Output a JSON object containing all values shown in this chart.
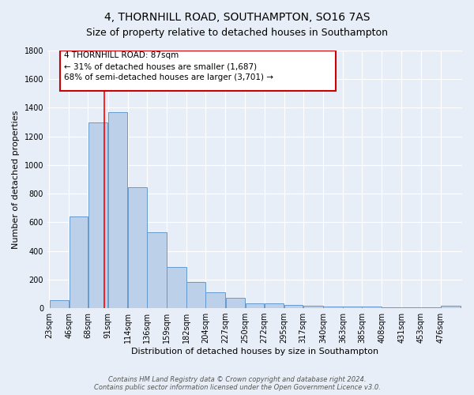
{
  "title": "4, THORNHILL ROAD, SOUTHAMPTON, SO16 7AS",
  "subtitle": "Size of property relative to detached houses in Southampton",
  "xlabel": "Distribution of detached houses by size in Southampton",
  "ylabel": "Number of detached properties",
  "bin_labels": [
    "23sqm",
    "46sqm",
    "68sqm",
    "91sqm",
    "114sqm",
    "136sqm",
    "159sqm",
    "182sqm",
    "204sqm",
    "227sqm",
    "250sqm",
    "272sqm",
    "295sqm",
    "317sqm",
    "340sqm",
    "363sqm",
    "385sqm",
    "408sqm",
    "431sqm",
    "453sqm",
    "476sqm"
  ],
  "bin_edges": [
    23,
    46,
    68,
    91,
    114,
    136,
    159,
    182,
    204,
    227,
    250,
    272,
    295,
    317,
    340,
    363,
    385,
    408,
    431,
    453,
    476,
    499
  ],
  "values": [
    55,
    640,
    1300,
    1370,
    845,
    530,
    285,
    185,
    110,
    70,
    35,
    35,
    25,
    15,
    10,
    10,
    10,
    5,
    5,
    5,
    15
  ],
  "bar_color": "#bdd0e9",
  "bar_edge_color": "#6699cc",
  "background_color": "#e8eef7",
  "grid_color": "#ffffff",
  "red_line_x": 87,
  "annotation_line1": "4 THORNHILL ROAD: 87sqm",
  "annotation_line2": "← 31% of detached houses are smaller (1,687)",
  "annotation_line3": "68% of semi-detached houses are larger (3,701) →",
  "annotation_box_color": "#ffffff",
  "annotation_box_edge": "#cc0000",
  "footer_text": "Contains HM Land Registry data © Crown copyright and database right 2024.\nContains public sector information licensed under the Open Government Licence v3.0.",
  "ylim": [
    0,
    1800
  ],
  "title_fontsize": 10,
  "subtitle_fontsize": 9,
  "ylabel_fontsize": 8,
  "xlabel_fontsize": 8
}
